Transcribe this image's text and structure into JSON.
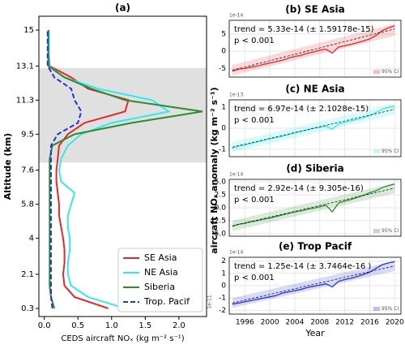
{
  "figure": {
    "right_ylabel": "aircraft NOₓ anomaly (kg m⁻² s⁻¹)"
  },
  "chart_data": [
    {
      "type": "profile",
      "title": "(a)",
      "xlabel": "CEDS aircraft NOₓ (kg m⁻² s⁻¹)",
      "ylabel": "Altitude (km)",
      "offset_label": "1e-11",
      "xlim": [
        -0.08,
        2.41
      ],
      "ylim": [
        -0.13,
        15.73
      ],
      "xticks": [
        {
          "value": 0,
          "label": "0.0"
        },
        0.5,
        {
          "value": 1,
          "label": "1.0"
        },
        1.5,
        {
          "value": 2,
          "label": "2.0"
        }
      ],
      "yticks": [
        0.3,
        2.1,
        4.0,
        5.8,
        7.6,
        9.5,
        11.3,
        13.1,
        15
      ],
      "shade_ylim": [
        8.0,
        13.0
      ],
      "shade_color": "#e0e0e0",
      "legend": "lower right",
      "altitude": [
        0.3,
        0.9,
        1.5,
        2.1,
        2.7,
        3.4,
        4.0,
        4.6,
        5.2,
        5.8,
        6.4,
        7.0,
        7.6,
        8.2,
        8.9,
        9.5,
        10.1,
        10.7,
        11.3,
        11.9,
        12.5,
        13.1,
        13.7,
        14.4,
        15.0
      ],
      "series": [
        {
          "name": "SE Asia",
          "color": "#e8262a",
          "dash": false,
          "values": [
            0.95,
            0.45,
            0.3,
            0.28,
            0.3,
            0.3,
            0.28,
            0.25,
            0.22,
            0.22,
            0.2,
            0.18,
            0.18,
            0.2,
            0.22,
            0.35,
            0.6,
            1.2,
            1.25,
            0.65,
            0.4,
            0.08,
            0.07,
            0.07,
            0.07
          ]
        },
        {
          "name": "NE Asia",
          "color": "#33e8ee",
          "dash": false,
          "values": [
            1.2,
            0.65,
            0.4,
            0.35,
            0.35,
            0.38,
            0.38,
            0.35,
            0.35,
            0.4,
            0.45,
            0.25,
            0.22,
            0.25,
            0.35,
            0.55,
            1.0,
            1.85,
            1.6,
            0.8,
            0.3,
            0.07,
            0.07,
            0.07,
            0.07
          ]
        },
        {
          "name": "Siberia",
          "color": "#2e8b2e",
          "dash": false,
          "values": [
            0.15,
            0.1,
            0.08,
            0.08,
            0.08,
            0.08,
            0.08,
            0.08,
            0.08,
            0.08,
            0.08,
            0.08,
            0.08,
            0.08,
            0.12,
            0.45,
            1.3,
            2.35,
            1.2,
            0.7,
            0.3,
            0.06,
            0.06,
            0.06,
            0.06
          ]
        },
        {
          "name": "Trop. Pacif",
          "color": "#2233dd",
          "dash": true,
          "values": [
            0.12,
            0.1,
            0.1,
            0.1,
            0.1,
            0.1,
            0.1,
            0.1,
            0.1,
            0.1,
            0.1,
            0.1,
            0.1,
            0.1,
            0.1,
            0.2,
            0.5,
            0.55,
            0.45,
            0.4,
            0.15,
            0.05,
            0.05,
            0.05,
            0.05
          ]
        }
      ]
    },
    {
      "type": "line",
      "title": "(b) SE Asia",
      "annotation": "trend = 5.33e-14 (± 1.59178e-15)",
      "pvalue": "p < 0.001",
      "offset_label": "1e-14",
      "ci_label": "95% CI",
      "color": "#e8262a",
      "xlim": [
        1993.5,
        2021
      ],
      "ylim": [
        -7.5,
        9
      ],
      "yticks": [
        -5,
        0,
        5
      ],
      "xticks": [
        1996,
        2000,
        2004,
        2008,
        2012,
        2016,
        2020
      ],
      "x": [
        1994,
        1995,
        1996,
        1997,
        1998,
        1999,
        2000,
        2001,
        2002,
        2003,
        2004,
        2005,
        2006,
        2007,
        2008,
        2009,
        2010,
        2011,
        2012,
        2013,
        2014,
        2015,
        2016,
        2017,
        2018,
        2019,
        2020
      ],
      "values": [
        -5.8,
        -5.2,
        -5.0,
        -4.6,
        -4.3,
        -3.8,
        -3.4,
        -3.0,
        -2.6,
        -2.0,
        -1.5,
        -1.2,
        -0.6,
        -0.2,
        0.3,
        0.6,
        -0.5,
        1.2,
        1.6,
        2.0,
        2.5,
        3.0,
        3.6,
        4.6,
        6.0,
        6.8,
        7.4
      ],
      "trend_x": [
        1994,
        2020
      ],
      "trend_line": [
        -5.5,
        6.5
      ],
      "ci_lower": [
        -7,
        4.5
      ],
      "ci_upper": [
        -4,
        8
      ]
    },
    {
      "type": "line",
      "title": "(c) NE Asia",
      "annotation": "trend = 6.97e-14 (± 2.1028e-15)",
      "pvalue": "p < 0.001",
      "offset_label": "1e-13",
      "ci_label": "95% CI",
      "color": "#33e8ee",
      "xlim": [
        1993.5,
        2021
      ],
      "ylim": [
        -1.35,
        1.35
      ],
      "yticks": [
        -1,
        0,
        1
      ],
      "xticks": [
        1996,
        2000,
        2004,
        2008,
        2012,
        2016,
        2020
      ],
      "x": [
        1994,
        1995,
        1996,
        1997,
        1998,
        1999,
        2000,
        2001,
        2002,
        2003,
        2004,
        2005,
        2006,
        2007,
        2008,
        2009,
        2010,
        2011,
        2012,
        2013,
        2014,
        2015,
        2016,
        2017,
        2018,
        2019,
        2020
      ],
      "values": [
        -0.95,
        -0.85,
        -0.8,
        -0.72,
        -0.65,
        -0.58,
        -0.5,
        -0.45,
        -0.38,
        -0.3,
        -0.22,
        -0.15,
        -0.08,
        0.0,
        0.05,
        0.1,
        -0.05,
        0.2,
        0.28,
        0.35,
        0.42,
        0.5,
        0.6,
        0.75,
        0.9,
        1.0,
        1.05
      ],
      "trend_x": [
        1994,
        2020
      ],
      "trend_line": [
        -0.9,
        0.9
      ],
      "ci_lower": [
        -1.15,
        0.65
      ],
      "ci_upper": [
        -0.65,
        1.15
      ]
    },
    {
      "type": "line",
      "title": "(d) Siberia",
      "annotation": "trend = 2.92e-14 (± 9.305e-16)",
      "pvalue": "p < 0.001",
      "offset_label": "1e-14",
      "ci_label": "95% CI",
      "color": "#2e8b2e",
      "xlim": [
        1993.5,
        2021
      ],
      "ylim": [
        -5.5,
        5.5
      ],
      "yticks": [
        {
          "value": -5,
          "label": "-5.0"
        },
        -2.5,
        {
          "value": 0,
          "label": "0.0"
        },
        2.5,
        {
          "value": 5,
          "label": "5.0"
        }
      ],
      "xticks": [
        1996,
        2000,
        2004,
        2008,
        2012,
        2016,
        2020
      ],
      "x": [
        1994,
        1995,
        1996,
        1997,
        1998,
        1999,
        2000,
        2001,
        2002,
        2003,
        2004,
        2005,
        2006,
        2007,
        2008,
        2009,
        2010,
        2011,
        2012,
        2013,
        2014,
        2015,
        2016,
        2017,
        2018,
        2019,
        2020
      ],
      "values": [
        -3.6,
        -3.2,
        -3.0,
        -2.7,
        -2.5,
        -2.2,
        -2.0,
        -1.7,
        -1.4,
        -1.1,
        -0.8,
        -0.6,
        -0.3,
        -0.1,
        0.2,
        0.5,
        -0.8,
        0.9,
        1.3,
        1.6,
        2.0,
        2.4,
        2.9,
        3.3,
        3.9,
        4.3,
        4.6
      ],
      "trend_x": [
        1994,
        2020
      ],
      "trend_line": [
        -3.5,
        3.8
      ],
      "ci_lower": [
        -4.5,
        2.8
      ],
      "ci_upper": [
        -2.5,
        4.8
      ]
    },
    {
      "type": "line",
      "title": "(e) Trop Pacif",
      "annotation": "trend = 1.25e-14 (± 3.7464e-16 )",
      "pvalue": "p < 0.001",
      "offset_label": "1e-14",
      "ci_label": "95% CI",
      "color": "#2233dd",
      "xlabel": "Year",
      "xlim": [
        1993.5,
        2021
      ],
      "ylim": [
        -2.3,
        2.3
      ],
      "yticks": [
        -2,
        -1,
        0,
        1,
        2
      ],
      "xticks": [
        1996,
        2000,
        2004,
        2008,
        2012,
        2016,
        2020
      ],
      "x": [
        1994,
        1995,
        1996,
        1997,
        1998,
        1999,
        2000,
        2001,
        2002,
        2003,
        2004,
        2005,
        2006,
        2007,
        2008,
        2009,
        2010,
        2011,
        2012,
        2013,
        2014,
        2015,
        2016,
        2017,
        2018,
        2019,
        2020
      ],
      "values": [
        -1.5,
        -1.4,
        -1.3,
        -1.2,
        -1.1,
        -1.0,
        -0.9,
        -0.8,
        -0.6,
        -0.5,
        -0.4,
        -0.3,
        -0.15,
        -0.05,
        0.05,
        0.15,
        -0.1,
        0.35,
        0.5,
        0.6,
        0.75,
        0.9,
        1.1,
        1.4,
        1.7,
        1.85,
        1.95
      ],
      "trend_x": [
        1994,
        2020
      ],
      "trend_line": [
        -1.4,
        1.6
      ],
      "ci_lower": [
        -1.8,
        1.2
      ],
      "ci_upper": [
        -1.0,
        2.0
      ]
    }
  ]
}
